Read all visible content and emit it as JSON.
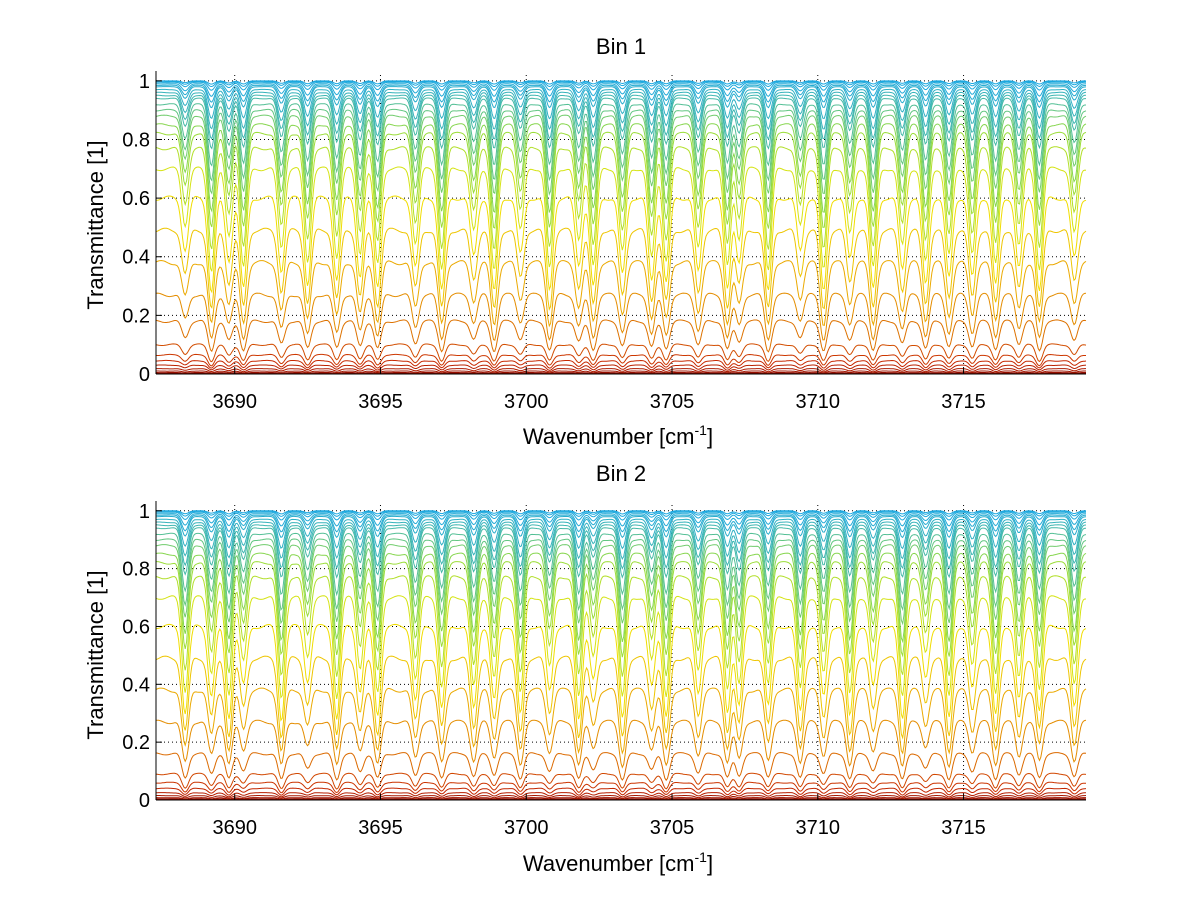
{
  "chart_data": [
    {
      "type": "line",
      "title": "Bin 1",
      "xlabel": "Wavenumber [cm",
      "xlabel_sup": "-1",
      "xlabel_close": "]",
      "ylabel": "Transmittance [1]",
      "xlim": [
        3687.3,
        3719.2
      ],
      "ylim": [
        0,
        1.02
      ],
      "xticks": [
        3690,
        3695,
        3700,
        3705,
        3710,
        3715
      ],
      "xtick_labels": [
        "3690",
        "3695",
        "3700",
        "3705",
        "3710",
        "3715"
      ],
      "yticks": [
        0,
        0.2,
        0.4,
        0.6,
        0.8,
        1
      ],
      "ytick_labels": [
        "0",
        "0.2",
        "0.4",
        "0.6",
        "0.8",
        "1"
      ],
      "grid": true,
      "colormap": "jet",
      "colors": {
        "high": "#1aa7e0",
        "mid": "#f2e600",
        "low": "#7a0000"
      },
      "series_baselines": [
        1.0,
        0.998,
        0.995,
        0.99,
        0.985,
        0.98,
        0.97,
        0.96,
        0.95,
        0.94,
        0.92,
        0.9,
        0.88,
        0.85,
        0.82,
        0.77,
        0.7,
        0.6,
        0.49,
        0.38,
        0.27,
        0.18,
        0.1,
        0.065,
        0.045,
        0.03,
        0.018,
        0.01,
        0.005,
        0.002
      ],
      "absorption_lines": [
        3688.3,
        3689.2,
        3689.8,
        3690.3,
        3691.6,
        3692.5,
        3693.5,
        3694.3,
        3694.9,
        3696.2,
        3697.1,
        3698.2,
        3698.9,
        3699.8,
        3700.8,
        3701.8,
        3702.3,
        3703.3,
        3704.3,
        3704.8,
        3705.9,
        3706.9,
        3707.3,
        3708.3,
        3709.4,
        3710.2,
        3711.1,
        3711.9,
        3712.9,
        3713.7,
        3714.5,
        3715.3,
        3716.1,
        3716.9,
        3717.6,
        3718.8
      ]
    },
    {
      "type": "line",
      "title": "Bin 2",
      "xlabel": "Wavenumber [cm",
      "xlabel_sup": "-1",
      "xlabel_close": "]",
      "ylabel": "Transmittance [1]",
      "xlim": [
        3687.3,
        3719.2
      ],
      "ylim": [
        0,
        1.02
      ],
      "xticks": [
        3690,
        3695,
        3700,
        3705,
        3710,
        3715
      ],
      "xtick_labels": [
        "3690",
        "3695",
        "3700",
        "3705",
        "3710",
        "3715"
      ],
      "yticks": [
        0,
        0.2,
        0.4,
        0.6,
        0.8,
        1
      ],
      "ytick_labels": [
        "0",
        "0.2",
        "0.4",
        "0.6",
        "0.8",
        "1"
      ],
      "grid": true,
      "colormap": "jet",
      "colors": {
        "high": "#1aa7e0",
        "mid": "#f2e600",
        "low": "#7a0000"
      },
      "series_baselines": [
        1.0,
        0.998,
        0.995,
        0.99,
        0.985,
        0.98,
        0.97,
        0.96,
        0.95,
        0.94,
        0.92,
        0.9,
        0.88,
        0.85,
        0.82,
        0.77,
        0.7,
        0.6,
        0.49,
        0.38,
        0.27,
        0.16,
        0.09,
        0.06,
        0.04,
        0.025,
        0.015,
        0.008,
        0.004,
        0.002
      ],
      "absorption_lines": [
        3688.3,
        3689.2,
        3689.8,
        3690.3,
        3691.6,
        3692.5,
        3693.5,
        3694.3,
        3694.9,
        3696.2,
        3697.1,
        3698.2,
        3698.9,
        3699.8,
        3700.8,
        3701.8,
        3702.3,
        3703.3,
        3704.3,
        3704.8,
        3705.9,
        3706.9,
        3707.3,
        3708.3,
        3709.4,
        3710.2,
        3711.1,
        3711.9,
        3712.9,
        3713.7,
        3714.5,
        3715.3,
        3716.1,
        3716.9,
        3717.6,
        3718.8
      ]
    }
  ]
}
